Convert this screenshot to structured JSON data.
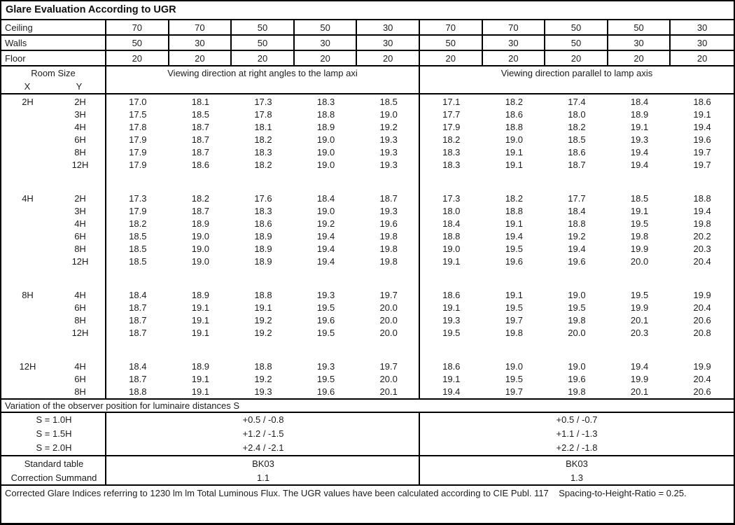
{
  "title": "Glare Evaluation According to UGR",
  "reflectance_rows": [
    {
      "label": "Ceiling",
      "values": [
        "70",
        "70",
        "50",
        "50",
        "30",
        "70",
        "70",
        "50",
        "50",
        "30"
      ]
    },
    {
      "label": "Walls",
      "values": [
        "50",
        "30",
        "50",
        "30",
        "30",
        "50",
        "30",
        "50",
        "30",
        "30"
      ]
    },
    {
      "label": "Floor",
      "values": [
        "20",
        "20",
        "20",
        "20",
        "20",
        "20",
        "20",
        "20",
        "20",
        "20"
      ]
    }
  ],
  "header": {
    "room_size": "Room Size",
    "x_label": "X",
    "y_label": "Y",
    "right_angles": "Viewing direction at right angles to the lamp axi",
    "parallel": "Viewing direction parallel to lamp axis"
  },
  "body_blocks": [
    {
      "x": "2H",
      "rows": [
        {
          "y": "2H",
          "ra": [
            "17.0",
            "18.1",
            "17.3",
            "18.3",
            "18.5"
          ],
          "pa": [
            "17.1",
            "18.2",
            "17.4",
            "18.4",
            "18.6"
          ]
        },
        {
          "y": "3H",
          "ra": [
            "17.5",
            "18.5",
            "17.8",
            "18.8",
            "19.0"
          ],
          "pa": [
            "17.7",
            "18.6",
            "18.0",
            "18.9",
            "19.1"
          ]
        },
        {
          "y": "4H",
          "ra": [
            "17.8",
            "18.7",
            "18.1",
            "18.9",
            "19.2"
          ],
          "pa": [
            "17.9",
            "18.8",
            "18.2",
            "19.1",
            "19.4"
          ]
        },
        {
          "y": "6H",
          "ra": [
            "17.9",
            "18.7",
            "18.2",
            "19.0",
            "19.3"
          ],
          "pa": [
            "18.2",
            "19.0",
            "18.5",
            "19.3",
            "19.6"
          ]
        },
        {
          "y": "8H",
          "ra": [
            "17.9",
            "18.7",
            "18.3",
            "19.0",
            "19.3"
          ],
          "pa": [
            "18.3",
            "19.1",
            "18.6",
            "19.4",
            "19.7"
          ]
        },
        {
          "y": "12H",
          "ra": [
            "17.9",
            "18.6",
            "18.2",
            "19.0",
            "19.3"
          ],
          "pa": [
            "18.3",
            "19.1",
            "18.7",
            "19.4",
            "19.7"
          ]
        }
      ]
    },
    {
      "x": "4H",
      "rows": [
        {
          "y": "2H",
          "ra": [
            "17.3",
            "18.2",
            "17.6",
            "18.4",
            "18.7"
          ],
          "pa": [
            "17.3",
            "18.2",
            "17.7",
            "18.5",
            "18.8"
          ]
        },
        {
          "y": "3H",
          "ra": [
            "17.9",
            "18.7",
            "18.3",
            "19.0",
            "19.3"
          ],
          "pa": [
            "18.0",
            "18.8",
            "18.4",
            "19.1",
            "19.4"
          ]
        },
        {
          "y": "4H",
          "ra": [
            "18.2",
            "18.9",
            "18.6",
            "19.2",
            "19.6"
          ],
          "pa": [
            "18.4",
            "19.1",
            "18.8",
            "19.5",
            "19.8"
          ]
        },
        {
          "y": "6H",
          "ra": [
            "18.5",
            "19.0",
            "18.9",
            "19.4",
            "19.8"
          ],
          "pa": [
            "18.8",
            "19.4",
            "19.2",
            "19.8",
            "20.2"
          ]
        },
        {
          "y": "8H",
          "ra": [
            "18.5",
            "19.0",
            "18.9",
            "19.4",
            "19.8"
          ],
          "pa": [
            "19.0",
            "19.5",
            "19.4",
            "19.9",
            "20.3"
          ]
        },
        {
          "y": "12H",
          "ra": [
            "18.5",
            "19.0",
            "18.9",
            "19.4",
            "19.8"
          ],
          "pa": [
            "19.1",
            "19.6",
            "19.6",
            "20.0",
            "20.4"
          ]
        }
      ]
    },
    {
      "x": "8H",
      "rows": [
        {
          "y": "4H",
          "ra": [
            "18.4",
            "18.9",
            "18.8",
            "19.3",
            "19.7"
          ],
          "pa": [
            "18.6",
            "19.1",
            "19.0",
            "19.5",
            "19.9"
          ]
        },
        {
          "y": "6H",
          "ra": [
            "18.7",
            "19.1",
            "19.1",
            "19.5",
            "20.0"
          ],
          "pa": [
            "19.1",
            "19.5",
            "19.5",
            "19.9",
            "20.4"
          ]
        },
        {
          "y": "8H",
          "ra": [
            "18.7",
            "19.1",
            "19.2",
            "19.6",
            "20.0"
          ],
          "pa": [
            "19.3",
            "19.7",
            "19.8",
            "20.1",
            "20.6"
          ]
        },
        {
          "y": "12H",
          "ra": [
            "18.7",
            "19.1",
            "19.2",
            "19.5",
            "20.0"
          ],
          "pa": [
            "19.5",
            "19.8",
            "20.0",
            "20.3",
            "20.8"
          ]
        }
      ]
    },
    {
      "x": "12H",
      "rows": [
        {
          "y": "4H",
          "ra": [
            "18.4",
            "18.9",
            "18.8",
            "19.3",
            "19.7"
          ],
          "pa": [
            "18.6",
            "19.0",
            "19.0",
            "19.4",
            "19.9"
          ]
        },
        {
          "y": "6H",
          "ra": [
            "18.7",
            "19.1",
            "19.2",
            "19.5",
            "20.0"
          ],
          "pa": [
            "19.1",
            "19.5",
            "19.6",
            "19.9",
            "20.4"
          ]
        },
        {
          "y": "8H",
          "ra": [
            "18.8",
            "19.1",
            "19.3",
            "19.6",
            "20.1"
          ],
          "pa": [
            "19.4",
            "19.7",
            "19.8",
            "20.1",
            "20.6"
          ]
        }
      ]
    }
  ],
  "variation": {
    "title": "Variation of the observer position for luminaire distances S",
    "rows": [
      {
        "label": "S = 1.0H",
        "ra": "+0.5 / -0.8",
        "pa": "+0.5 / -0.7"
      },
      {
        "label": "S = 1.5H",
        "ra": "+1.2 / -1.5",
        "pa": "+1.1 / -1.3"
      },
      {
        "label": "S = 2.0H",
        "ra": "+2.4 / -2.1",
        "pa": "+2.2 / -1.8"
      }
    ]
  },
  "summary_rows": [
    {
      "label": "Standard table",
      "ra": "BK03",
      "pa": "BK03"
    },
    {
      "label": "Correction Summand",
      "ra": "1.1",
      "pa": "1.3"
    }
  ],
  "footer": "Corrected Glare Indices referring to 1230 lm lm Total Luminous Flux. The UGR values have been calculated according to CIE Publ. 117    Spacing-to-Height-Ratio = 0.25."
}
